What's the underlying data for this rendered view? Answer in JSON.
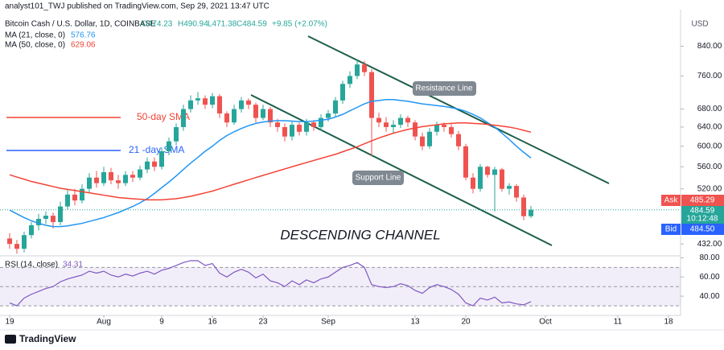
{
  "header": {
    "publisher": "analyst101_TWJ published on TradingView.com, Sep 29, 2021 13:47 UTC",
    "symbol": "Bitcoin Cash / U.S. Dollar, 1D, COINBASE",
    "open": "O474.23",
    "high": "H490.94",
    "low": "L471.38",
    "close": "C484.59",
    "change": "+9.85 (+2.07%)"
  },
  "footer": {
    "brand": "TradingView"
  },
  "chart_data": {
    "type": "candlestick",
    "log_scale": true,
    "up_color": "#26a69a",
    "down_color": "#ef5350",
    "ohlc": [
      [
        440,
        448,
        425,
        432
      ],
      [
        432,
        438,
        418,
        425
      ],
      [
        425,
        450,
        420,
        445
      ],
      [
        445,
        465,
        440,
        460
      ],
      [
        460,
        478,
        452,
        470
      ],
      [
        470,
        482,
        462,
        475
      ],
      [
        475,
        480,
        455,
        465
      ],
      [
        465,
        498,
        460,
        490
      ],
      [
        490,
        518,
        485,
        510
      ],
      [
        510,
        520,
        492,
        500
      ],
      [
        500,
        528,
        495,
        520
      ],
      [
        520,
        548,
        512,
        540
      ],
      [
        540,
        552,
        522,
        530
      ],
      [
        530,
        560,
        525,
        550
      ],
      [
        550,
        558,
        528,
        535
      ],
      [
        535,
        545,
        520,
        530
      ],
      [
        530,
        552,
        525,
        545
      ],
      [
        545,
        552,
        532,
        540
      ],
      [
        540,
        562,
        535,
        555
      ],
      [
        555,
        578,
        548,
        570
      ],
      [
        570,
        578,
        552,
        560
      ],
      [
        560,
        598,
        555,
        590
      ],
      [
        590,
        618,
        582,
        610
      ],
      [
        610,
        648,
        602,
        640
      ],
      [
        640,
        690,
        632,
        680
      ],
      [
        680,
        712,
        672,
        700
      ],
      [
        700,
        720,
        690,
        705
      ],
      [
        705,
        712,
        680,
        690
      ],
      [
        690,
        718,
        682,
        710
      ],
      [
        710,
        715,
        660,
        670
      ],
      [
        670,
        675,
        640,
        650
      ],
      [
        650,
        690,
        645,
        680
      ],
      [
        680,
        708,
        672,
        700
      ],
      [
        700,
        705,
        680,
        690
      ],
      [
        690,
        695,
        650,
        660
      ],
      [
        660,
        690,
        655,
        680
      ],
      [
        680,
        685,
        640,
        650
      ],
      [
        650,
        658,
        630,
        640
      ],
      [
        640,
        648,
        610,
        620
      ],
      [
        620,
        652,
        612,
        645
      ],
      [
        645,
        650,
        622,
        630
      ],
      [
        630,
        658,
        622,
        650
      ],
      [
        650,
        655,
        632,
        640
      ],
      [
        640,
        668,
        632,
        660
      ],
      [
        660,
        678,
        652,
        670
      ],
      [
        670,
        708,
        662,
        700
      ],
      [
        700,
        748,
        692,
        740
      ],
      [
        740,
        772,
        730,
        760
      ],
      [
        760,
        805,
        752,
        790
      ],
      [
        790,
        800,
        760,
        770
      ],
      [
        770,
        778,
        580,
        660
      ],
      [
        660,
        672,
        640,
        650
      ],
      [
        650,
        662,
        630,
        640
      ],
      [
        640,
        655,
        628,
        645
      ],
      [
        645,
        668,
        638,
        660
      ],
      [
        660,
        665,
        640,
        650
      ],
      [
        650,
        655,
        612,
        620
      ],
      [
        620,
        628,
        592,
        600
      ],
      [
        600,
        638,
        595,
        630
      ],
      [
        630,
        652,
        622,
        645
      ],
      [
        645,
        650,
        630,
        640
      ],
      [
        640,
        646,
        618,
        625
      ],
      [
        625,
        632,
        592,
        600
      ],
      [
        600,
        605,
        535,
        540
      ],
      [
        540,
        548,
        512,
        520
      ],
      [
        520,
        565,
        515,
        560
      ],
      [
        560,
        562,
        540,
        545
      ],
      [
        545,
        560,
        482,
        555
      ],
      [
        555,
        558,
        515,
        520
      ],
      [
        520,
        530,
        510,
        525
      ],
      [
        525,
        528,
        498,
        505
      ],
      [
        505,
        510,
        468,
        474.23
      ],
      [
        474.23,
        490.94,
        471.38,
        484.59
      ]
    ],
    "series": [
      {
        "name": "MA (21, close, 0)",
        "color": "#2196f3",
        "last": 576.76,
        "values": [
          484,
          478,
          472,
          467,
          463,
          460,
          458,
          458,
          459,
          461,
          463,
          466,
          469,
          472,
          476,
          480,
          485,
          490,
          496,
          503,
          512,
          522,
          532,
          543,
          555,
          567,
          578,
          590,
          600,
          612,
          622,
          630,
          637,
          643,
          648,
          651,
          653,
          654,
          654,
          653,
          652,
          652,
          653,
          655,
          657,
          662,
          668,
          676,
          684,
          692,
          698,
          700,
          702,
          702,
          700,
          698,
          695,
          692,
          690,
          688,
          686,
          683,
          680,
          675,
          668,
          660,
          650,
          640,
          627,
          614,
          600,
          588,
          576.76
        ]
      },
      {
        "name": "MA (50, close, 0)",
        "color": "#f44336",
        "last": 629.06,
        "values": [
          545,
          541,
          537,
          533,
          530,
          527,
          524,
          521,
          519,
          517,
          515,
          513,
          511,
          509,
          507,
          505,
          504,
          503,
          502,
          501,
          501,
          501,
          502,
          503,
          505,
          507,
          510,
          513,
          516,
          520,
          524,
          528,
          532,
          536,
          540,
          544,
          548,
          552,
          556,
          560,
          564,
          568,
          572,
          576,
          580,
          584,
          589,
          594,
          599,
          605,
          611,
          617,
          622,
          627,
          631,
          635,
          638,
          641,
          643,
          645,
          647,
          648,
          649,
          649,
          648,
          647,
          646,
          644,
          642,
          640,
          637,
          633,
          629.06
        ]
      }
    ],
    "ylim": [
      415,
      950
    ],
    "yticks": [
      {
        "value": 840,
        "label": "840.00"
      },
      {
        "value": 760,
        "label": "760.00"
      },
      {
        "value": 680,
        "label": "680.00"
      },
      {
        "value": 640,
        "label": "640.00"
      },
      {
        "value": 600,
        "label": "600.00"
      },
      {
        "value": 560,
        "label": "560.00"
      },
      {
        "value": 520,
        "label": "520.00"
      },
      {
        "value": 432,
        "label": "432.00"
      }
    ],
    "y_unit": "USD",
    "xticks": [
      {
        "value": 0,
        "label": "19"
      },
      {
        "value": 13,
        "label": "Aug"
      },
      {
        "value": 21,
        "label": "9"
      },
      {
        "value": 28,
        "label": "16"
      },
      {
        "value": 35,
        "label": "23"
      },
      {
        "value": 44,
        "label": "Sep"
      },
      {
        "value": 56,
        "label": "13"
      },
      {
        "value": 63,
        "label": "20"
      },
      {
        "value": 74,
        "label": "Oct"
      },
      {
        "value": 84,
        "label": "11"
      },
      {
        "value": 91,
        "label": "18"
      }
    ],
    "badges": {
      "ask_label": "Ask",
      "ask": 485.29,
      "last": 484.59,
      "countdown": "10:12:48",
      "bid_label": "Bid",
      "bid": {
        "value": 484.5,
        "label": "484.50"
      }
    },
    "annotations": {
      "sma50": "50-day SMA",
      "sma21": "21 -day SMA",
      "resistance": "Resistance Line",
      "support": "Support Line",
      "pattern": "DESCENDING CHANNEL"
    },
    "rsi": {
      "name": "RSI (14, close)",
      "last": 34.31,
      "color": "#7e57c2",
      "values": [
        33,
        30,
        38,
        42,
        45,
        48,
        50,
        55,
        58,
        60,
        62,
        66,
        64,
        66,
        62,
        60,
        63,
        61,
        64,
        66,
        63,
        67,
        69,
        72,
        75,
        77,
        77,
        72,
        74,
        64,
        60,
        65,
        68,
        65,
        59,
        63,
        56,
        54,
        50,
        56,
        52,
        57,
        54,
        58,
        60,
        65,
        70,
        72,
        75,
        70,
        52,
        50,
        49,
        50,
        53,
        51,
        46,
        43,
        49,
        52,
        50,
        47,
        42,
        33,
        30,
        38,
        36,
        39,
        33,
        34,
        32,
        31,
        34.31
      ],
      "ylim": [
        20,
        82
      ],
      "yticks": [
        {
          "value": 80,
          "label": "80.00"
        },
        {
          "value": 60,
          "label": "60.00"
        },
        {
          "value": 40,
          "label": "40.00"
        }
      ],
      "bands": [
        70,
        50,
        30
      ]
    }
  }
}
